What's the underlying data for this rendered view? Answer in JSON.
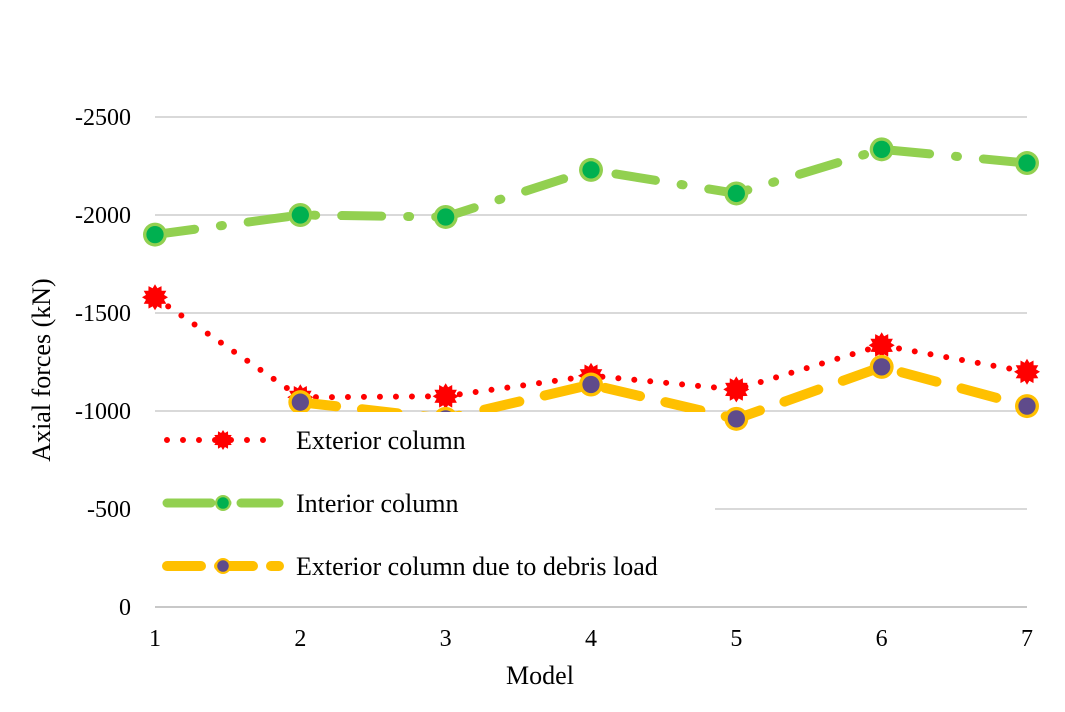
{
  "chart_data": {
    "type": "line",
    "x": [
      1,
      2,
      3,
      4,
      5,
      6,
      7
    ],
    "xlabel": "Model",
    "ylabel": "Axial forces  (kN)",
    "ylim": [
      0,
      -2500
    ],
    "yticks": [
      0,
      -500,
      -1000,
      -1500,
      -2000,
      -2500
    ],
    "grid": true,
    "legend": "left-lower",
    "series": [
      {
        "name": "Exterior column",
        "values": [
          -1580,
          -1070,
          -1075,
          -1180,
          -1110,
          -1335,
          -1200
        ],
        "color": "#ff0000",
        "style": "dotted",
        "marker": "star"
      },
      {
        "name": "Interior column",
        "values": [
          -1900,
          -2000,
          -1990,
          -2230,
          -2110,
          -2335,
          -2265
        ],
        "color": "#92d050",
        "markerColor": "#00b050",
        "style": "dash-dot",
        "marker": "circle"
      },
      {
        "name": "Exterior column due to debris load",
        "values": [
          null,
          -1045,
          -960,
          -1135,
          -960,
          -1225,
          -1025
        ],
        "color": "#ffc000",
        "markerColor": "#5f4b8b",
        "style": "dashed",
        "marker": "circle"
      }
    ]
  }
}
